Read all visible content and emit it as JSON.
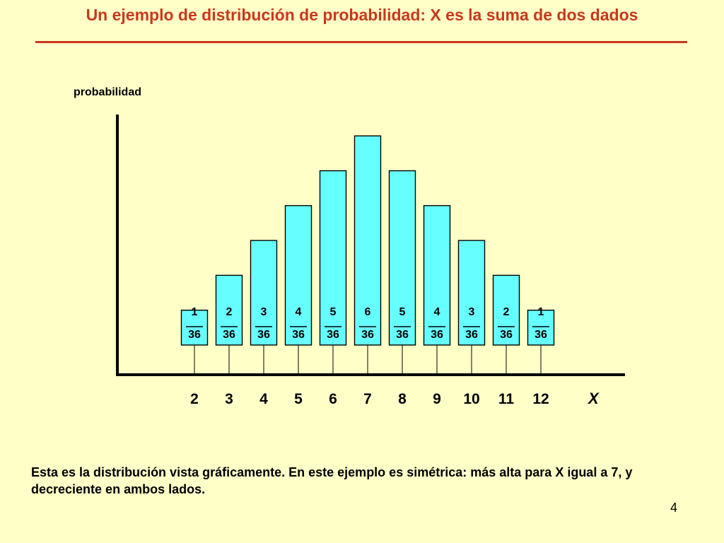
{
  "slide": {
    "title": "Un ejemplo de distribución de probabilidad: X es la suma de dos dados",
    "caption": "Esta es la distribución vista gráficamente. En este ejemplo es simétrica: más alta para X igual a 7, y decreciente en ambos lados.",
    "page_number": "4",
    "colors": {
      "title": "#c8381c",
      "bar_fill": "#66ffff",
      "background": "#ffffc8"
    }
  },
  "chart_data": {
    "type": "bar",
    "ylabel": "probabilidad",
    "xlabel": "X",
    "categories": [
      "2",
      "3",
      "4",
      "5",
      "6",
      "7",
      "8",
      "9",
      "10",
      "11",
      "12"
    ],
    "numerators": [
      1,
      2,
      3,
      4,
      5,
      6,
      5,
      4,
      3,
      2,
      1
    ],
    "denominators": [
      36,
      36,
      36,
      36,
      36,
      36,
      36,
      36,
      36,
      36,
      36
    ],
    "labels_num": [
      "1",
      "2",
      "3",
      "4",
      "5",
      "6",
      "5",
      "4",
      "3",
      "2",
      "1"
    ],
    "labels_den": [
      "36",
      "36",
      "36",
      "36",
      "36",
      "36",
      "36",
      "36",
      "36",
      "36",
      "36"
    ],
    "grid": false,
    "legend": "none"
  }
}
